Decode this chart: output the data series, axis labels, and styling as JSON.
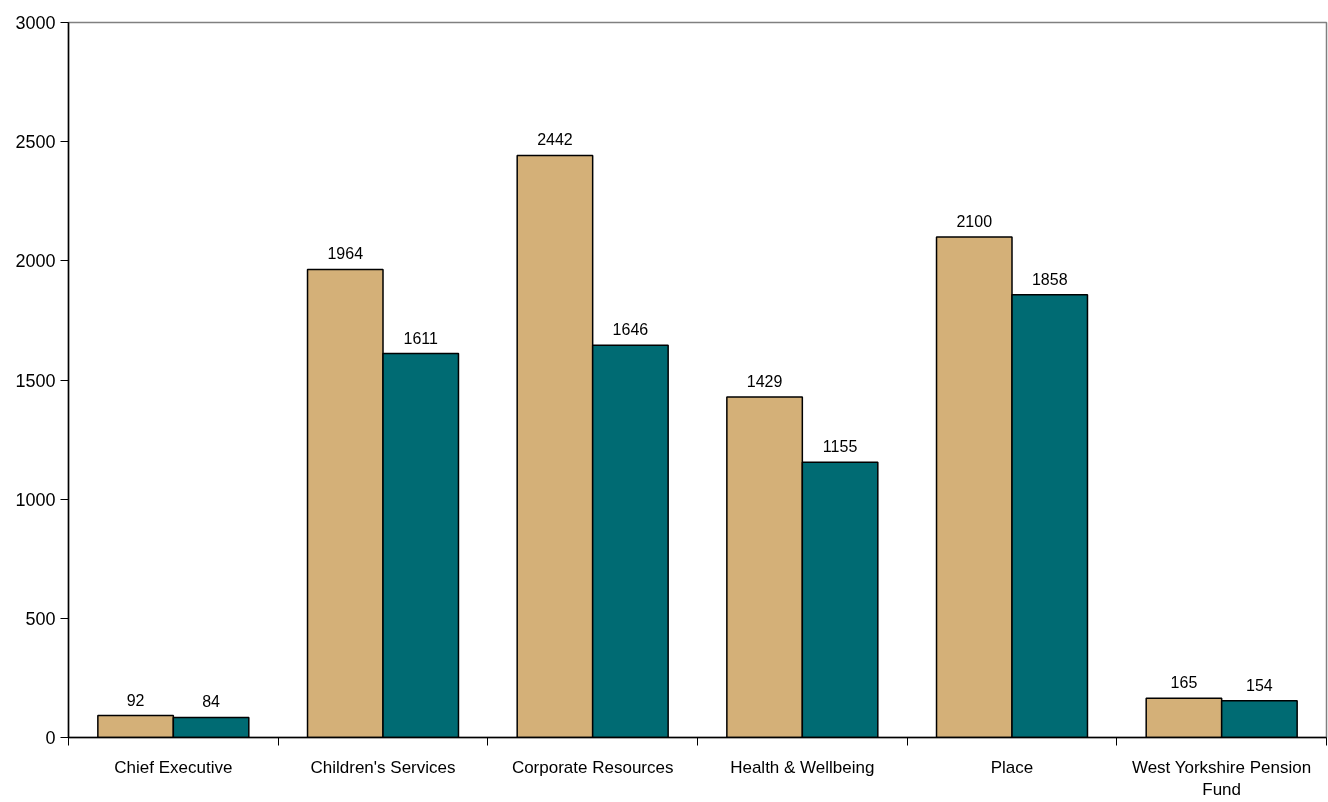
{
  "chart_data": {
    "type": "bar",
    "categories": [
      "Chief Executive",
      "Children's Services",
      "Corporate Resources",
      "Health & Wellbeing",
      "Place",
      "West Yorkshire Pension Fund"
    ],
    "series": [
      {
        "color": "#d4b078",
        "values": [
          92,
          1964,
          2442,
          1429,
          2100,
          165
        ]
      },
      {
        "color": "#006b73",
        "values": [
          84,
          1611,
          1646,
          1155,
          1858,
          154
        ]
      }
    ],
    "ylim": [
      0,
      3000
    ],
    "yticks": [
      0,
      500,
      1000,
      1500,
      2000,
      2500,
      3000
    ],
    "data_labels": true
  }
}
